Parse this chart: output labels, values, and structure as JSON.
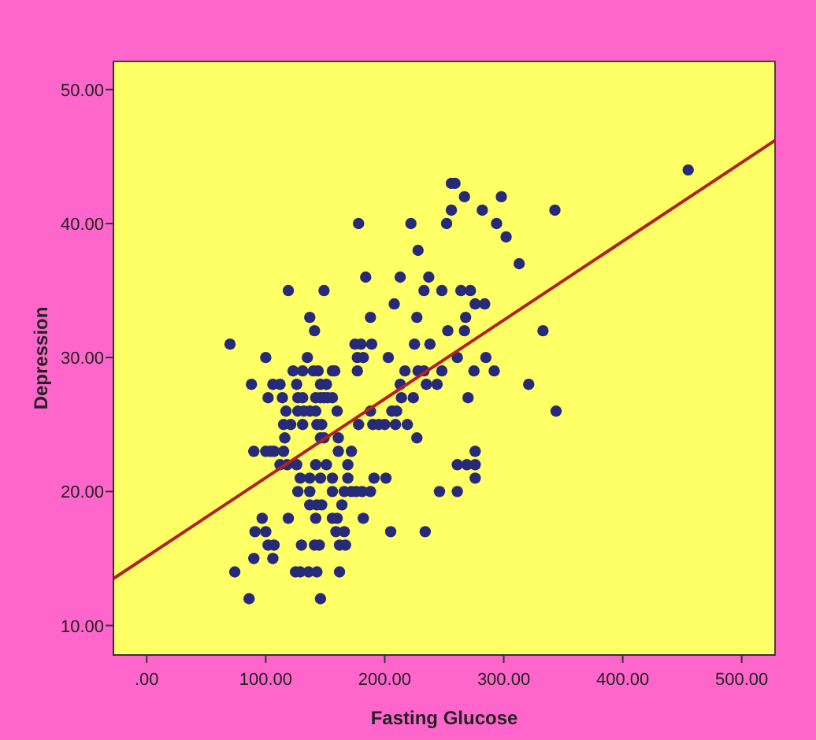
{
  "chart_data": {
    "type": "scatter",
    "xlabel": "Fasting Glucose",
    "ylabel": "Depression",
    "xlim": [
      -28,
      528
    ],
    "ylim": [
      7.8,
      52.1
    ],
    "xticks": [
      {
        "value": 0,
        "label": ".00"
      },
      {
        "value": 100,
        "label": "100.00"
      },
      {
        "value": 200,
        "label": "200.00"
      },
      {
        "value": 300,
        "label": "300.00"
      },
      {
        "value": 400,
        "label": "400.00"
      },
      {
        "value": 500,
        "label": "500.00"
      }
    ],
    "yticks": [
      {
        "value": 10,
        "label": "10.00"
      },
      {
        "value": 20,
        "label": "20.00"
      },
      {
        "value": 30,
        "label": "30.00"
      },
      {
        "value": 40,
        "label": "40.00"
      },
      {
        "value": 50,
        "label": "50.00"
      }
    ],
    "grid": false,
    "marker": "circle",
    "series": [
      {
        "color": "#262a78",
        "x": [
          455,
          256,
          259,
          267,
          298,
          256,
          282,
          343,
          178,
          222,
          252,
          294,
          302,
          228,
          313,
          184,
          213,
          237,
          119,
          149,
          233,
          248,
          264,
          272,
          208,
          276,
          284,
          137,
          188,
          227,
          268,
          141,
          253,
          267,
          333,
          70,
          175,
          180,
          189,
          225,
          238,
          100,
          135,
          177,
          182,
          203,
          261,
          285,
          123,
          131,
          140,
          144,
          156,
          158,
          177,
          217,
          228,
          233,
          248,
          275,
          292,
          88,
          106,
          112,
          126,
          146,
          151,
          213,
          235,
          244,
          321,
          102,
          114,
          127,
          131,
          142,
          146,
          149,
          152,
          156,
          214,
          224,
          270,
          117,
          127,
          132,
          137,
          142,
          160,
          188,
          206,
          210,
          344,
          115,
          121,
          131,
          143,
          147,
          178,
          190,
          195,
          200,
          209,
          219,
          116,
          146,
          149,
          161,
          227,
          90,
          100,
          104,
          107,
          115,
          161,
          172,
          276,
          112,
          118,
          126,
          142,
          151,
          169,
          261,
          269,
          276,
          129,
          137,
          146,
          156,
          169,
          191,
          201,
          276,
          127,
          137,
          156,
          166,
          172,
          176,
          181,
          188,
          246,
          261,
          137,
          143,
          147,
          164,
          97,
          119,
          142,
          156,
          160,
          182,
          91,
          100,
          159,
          166,
          205,
          234,
          102,
          107,
          130,
          141,
          145,
          162,
          167,
          90,
          106,
          74,
          125,
          129,
          136,
          143,
          162,
          86,
          146
        ],
        "values": [
          44,
          43,
          43,
          42,
          42,
          41,
          41,
          41,
          40,
          40,
          40,
          40,
          39,
          38,
          37,
          36,
          36,
          36,
          35,
          35,
          35,
          35,
          35,
          35,
          34,
          34,
          34,
          33,
          33,
          33,
          33,
          32,
          32,
          32,
          32,
          31,
          31,
          31,
          31,
          31,
          31,
          30,
          30,
          30,
          30,
          30,
          30,
          30,
          29,
          29,
          29,
          29,
          29,
          29,
          29,
          29,
          29,
          29,
          29,
          29,
          29,
          28,
          28,
          28,
          28,
          28,
          28,
          28,
          28,
          28,
          28,
          27,
          27,
          27,
          27,
          27,
          27,
          27,
          27,
          27,
          27,
          27,
          27,
          26,
          26,
          26,
          26,
          26,
          26,
          26,
          26,
          26,
          26,
          25,
          25,
          25,
          25,
          25,
          25,
          25,
          25,
          25,
          25,
          25,
          24,
          24,
          24,
          24,
          24,
          23,
          23,
          23,
          23,
          23,
          23,
          23,
          23,
          22,
          22,
          22,
          22,
          22,
          22,
          22,
          22,
          22,
          21,
          21,
          21,
          21,
          21,
          21,
          21,
          21,
          20,
          20,
          20,
          20,
          20,
          20,
          20,
          20,
          20,
          20,
          19,
          19,
          19,
          19,
          18,
          18,
          18,
          18,
          18,
          18,
          17,
          17,
          17,
          17,
          17,
          17,
          16,
          16,
          16,
          16,
          16,
          16,
          16,
          15,
          15,
          14,
          14,
          14,
          14,
          14,
          14,
          12,
          12
        ]
      },
      {
        "type": "line",
        "color": "#b22222",
        "x": [
          -28,
          528
        ],
        "values": [
          13.5,
          46.2
        ],
        "marker": "none",
        "line_style": "solid"
      }
    ]
  }
}
